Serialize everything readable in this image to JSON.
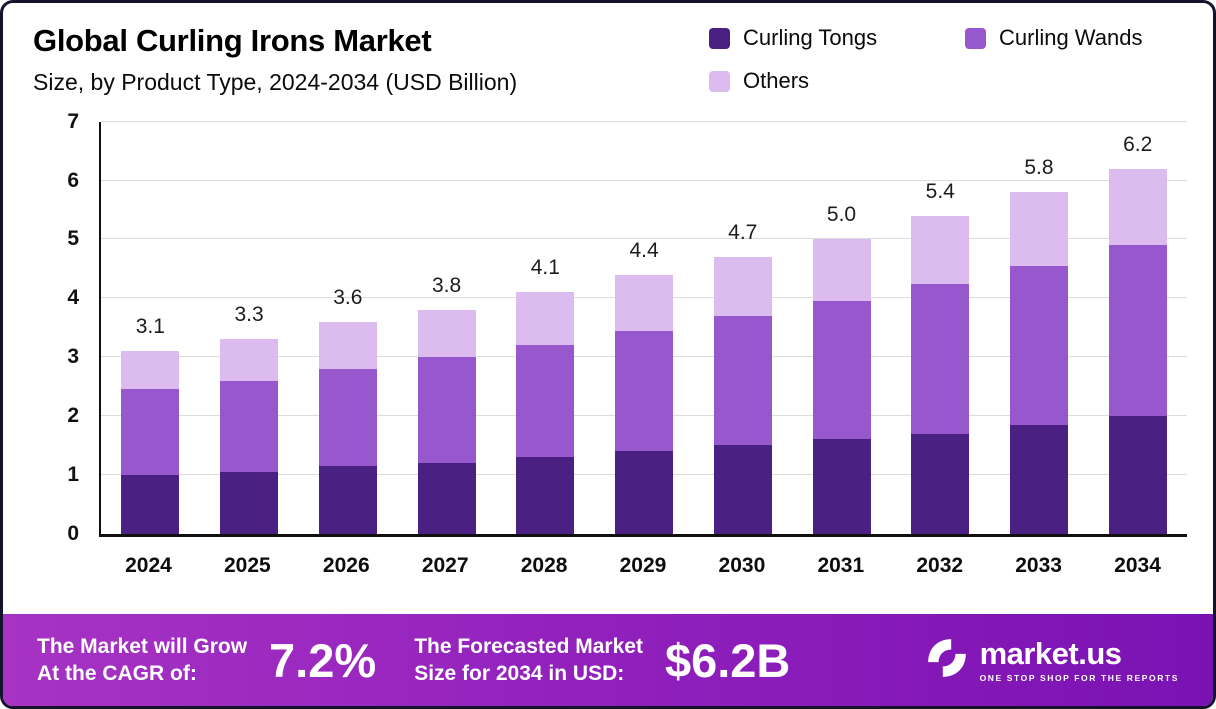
{
  "header": {
    "title": "Global Curling Irons Market",
    "subtitle": "Size, by Product Type, 2024-2034 (USD Billion)"
  },
  "legend": [
    {
      "label": "Curling Tongs",
      "color": "#4B2083"
    },
    {
      "label": "Curling Wands",
      "color": "#9858CD"
    },
    {
      "label": "Others",
      "color": "#DCBBEE"
    }
  ],
  "chart_data": {
    "type": "bar",
    "stacked": true,
    "title": "Global Curling Irons Market Size, by Product Type, 2024-2034 (USD Billion)",
    "xlabel": "",
    "ylabel": "",
    "ylim": [
      0,
      7
    ],
    "yticks": [
      0,
      1,
      2,
      3,
      4,
      5,
      6,
      7
    ],
    "grid": true,
    "legend_position": "top-right",
    "categories": [
      "2024",
      "2025",
      "2026",
      "2027",
      "2028",
      "2029",
      "2030",
      "2031",
      "2032",
      "2033",
      "2034"
    ],
    "series": [
      {
        "name": "Curling Tongs",
        "color": "#4B2083",
        "values": [
          1.0,
          1.05,
          1.15,
          1.2,
          1.3,
          1.4,
          1.5,
          1.6,
          1.7,
          1.85,
          2.0
        ]
      },
      {
        "name": "Curling Wands",
        "color": "#9858CD",
        "values": [
          1.45,
          1.55,
          1.65,
          1.8,
          1.9,
          2.05,
          2.2,
          2.35,
          2.55,
          2.7,
          2.9
        ]
      },
      {
        "name": "Others",
        "color": "#DCBBEE",
        "values": [
          0.65,
          0.7,
          0.8,
          0.8,
          0.9,
          0.95,
          1.0,
          1.05,
          1.15,
          1.25,
          1.3
        ]
      }
    ],
    "totals": [
      3.1,
      3.3,
      3.6,
      3.8,
      4.1,
      4.4,
      4.7,
      5.0,
      5.4,
      5.8,
      6.2
    ]
  },
  "footer": {
    "cagr_label_line1": "The Market will Grow",
    "cagr_label_line2": "At the CAGR of:",
    "cagr_value": "7.2%",
    "forecast_label_line1": "The Forecasted Market",
    "forecast_label_line2": "Size for 2034 in USD:",
    "forecast_value": "$6.2B",
    "brand_name": "market.us",
    "brand_tagline": "ONE STOP SHOP FOR THE REPORTS"
  }
}
